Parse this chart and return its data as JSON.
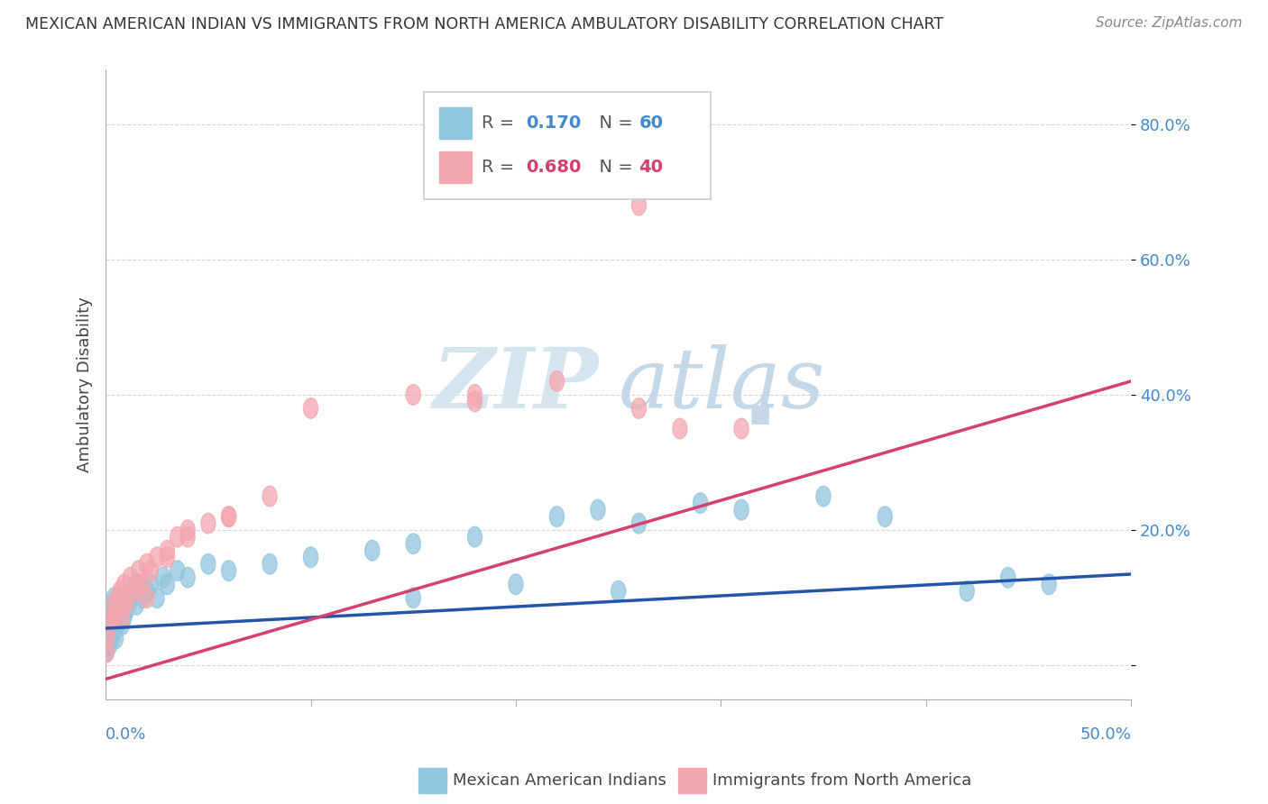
{
  "title": "MEXICAN AMERICAN INDIAN VS IMMIGRANTS FROM NORTH AMERICA AMBULATORY DISABILITY CORRELATION CHART",
  "source": "Source: ZipAtlas.com",
  "ylabel": "Ambulatory Disability",
  "xlim": [
    0.0,
    0.5
  ],
  "ylim": [
    -0.05,
    0.88
  ],
  "ytick_values": [
    0.0,
    0.2,
    0.4,
    0.6,
    0.8
  ],
  "ytick_labels": [
    "",
    "20.0%",
    "40.0%",
    "60.0%",
    "80.0%"
  ],
  "xtick_labels": [
    "0.0%",
    "50.0%"
  ],
  "legend_blue_r_val": "0.170",
  "legend_blue_n_val": "60",
  "legend_pink_r_val": "0.680",
  "legend_pink_n_val": "40",
  "legend_label_blue": "Mexican American Indians",
  "legend_label_pink": "Immigrants from North America",
  "blue_color": "#92C5DE",
  "pink_color": "#F4A6B0",
  "blue_line_color": "#2255AA",
  "pink_line_color": "#D44070",
  "background_color": "#FFFFFF",
  "grid_color": "#cccccc",
  "blue_scatter_x": [
    0.0005,
    0.001,
    0.001,
    0.0015,
    0.002,
    0.002,
    0.002,
    0.003,
    0.003,
    0.003,
    0.004,
    0.004,
    0.004,
    0.005,
    0.005,
    0.005,
    0.006,
    0.006,
    0.006,
    0.007,
    0.007,
    0.008,
    0.008,
    0.009,
    0.009,
    0.01,
    0.01,
    0.011,
    0.012,
    0.013,
    0.015,
    0.016,
    0.018,
    0.02,
    0.022,
    0.025,
    0.028,
    0.03,
    0.035,
    0.04,
    0.05,
    0.06,
    0.08,
    0.1,
    0.13,
    0.15,
    0.18,
    0.22,
    0.24,
    0.26,
    0.29,
    0.31,
    0.35,
    0.38,
    0.42,
    0.44,
    0.46,
    0.15,
    0.2,
    0.25
  ],
  "blue_scatter_y": [
    0.02,
    0.03,
    0.04,
    0.05,
    0.03,
    0.06,
    0.08,
    0.04,
    0.07,
    0.09,
    0.05,
    0.08,
    0.1,
    0.04,
    0.07,
    0.09,
    0.06,
    0.08,
    0.1,
    0.07,
    0.09,
    0.06,
    0.08,
    0.07,
    0.09,
    0.08,
    0.1,
    0.09,
    0.1,
    0.11,
    0.09,
    0.12,
    0.1,
    0.11,
    0.12,
    0.1,
    0.13,
    0.12,
    0.14,
    0.13,
    0.15,
    0.14,
    0.15,
    0.16,
    0.17,
    0.18,
    0.19,
    0.22,
    0.23,
    0.21,
    0.24,
    0.23,
    0.25,
    0.22,
    0.11,
    0.13,
    0.12,
    0.1,
    0.12,
    0.11
  ],
  "pink_scatter_x": [
    0.0005,
    0.001,
    0.002,
    0.003,
    0.004,
    0.005,
    0.006,
    0.007,
    0.008,
    0.009,
    0.01,
    0.012,
    0.014,
    0.016,
    0.018,
    0.02,
    0.022,
    0.025,
    0.03,
    0.035,
    0.04,
    0.05,
    0.06,
    0.08,
    0.1,
    0.15,
    0.18,
    0.22,
    0.26,
    0.28,
    0.008,
    0.01,
    0.015,
    0.02,
    0.03,
    0.04,
    0.06,
    0.18,
    0.26,
    0.31
  ],
  "pink_scatter_y": [
    0.02,
    0.04,
    0.06,
    0.07,
    0.09,
    0.08,
    0.1,
    0.11,
    0.09,
    0.12,
    0.1,
    0.13,
    0.11,
    0.14,
    0.12,
    0.15,
    0.14,
    0.16,
    0.17,
    0.19,
    0.2,
    0.21,
    0.22,
    0.25,
    0.38,
    0.4,
    0.39,
    0.42,
    0.68,
    0.35,
    0.07,
    0.09,
    0.12,
    0.1,
    0.16,
    0.19,
    0.22,
    0.4,
    0.38,
    0.35
  ],
  "blue_line_x": [
    0.0,
    0.5
  ],
  "blue_line_y": [
    0.055,
    0.135
  ],
  "pink_line_x": [
    0.0,
    0.5
  ],
  "pink_line_y": [
    -0.02,
    0.42
  ],
  "watermark_zip": "ZIP",
  "watermark_atlas": "atlas",
  "watermark_dot": "·",
  "watermark_color_zip": "#c8d8e8",
  "watermark_color_atlas": "#b8c8d8"
}
